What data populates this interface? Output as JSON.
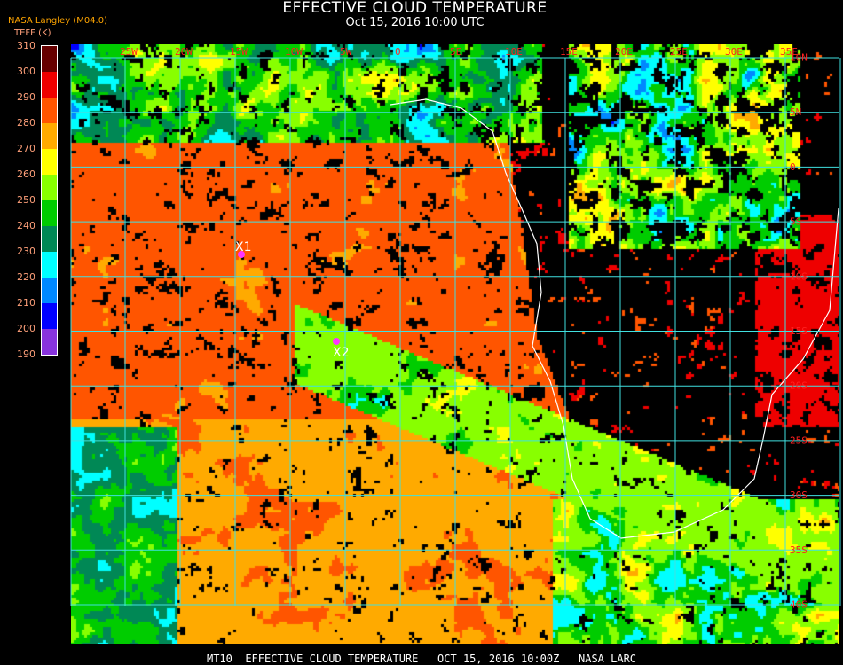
{
  "header": {
    "title": "EFFECTIVE CLOUD TEMPERATURE",
    "subtitle": "Oct 15, 2016 10:00 UTC",
    "source": "NASA Langley (M04.0)"
  },
  "legend": {
    "unit_label": "TEFF (K)",
    "ticks": [
      "310",
      "300",
      "290",
      "280",
      "270",
      "260",
      "250",
      "240",
      "230",
      "220",
      "210",
      "200",
      "190"
    ],
    "colors": [
      "#660000",
      "#ee0000",
      "#ff5500",
      "#ffaa00",
      "#ffff00",
      "#88ff00",
      "#00cc00",
      "#008855",
      "#00ffff",
      "#0088ff",
      "#0000ff",
      "#8833dd"
    ]
  },
  "map": {
    "grid_color": "#40e0e0",
    "coast_color": "#ffffff",
    "lon_labels": [
      "25W",
      "20W",
      "15W",
      "10W",
      "5W",
      "0",
      "5E",
      "10E",
      "15E",
      "20E",
      "25E",
      "30E",
      "35E"
    ],
    "lat_labels": [
      "10N",
      "5N",
      "0",
      "5S",
      "10S",
      "15S",
      "20S",
      "25S",
      "30S",
      "35S",
      "40S"
    ],
    "markers": [
      {
        "label": "X1",
        "color": "#ff33ff"
      },
      {
        "label": "X2",
        "color": "#ff33ff"
      }
    ]
  },
  "footer": {
    "text": "MT10  EFFECTIVE CLOUD TEMPERATURE   OCT 15, 2016 10:00Z   NASA LARC"
  }
}
